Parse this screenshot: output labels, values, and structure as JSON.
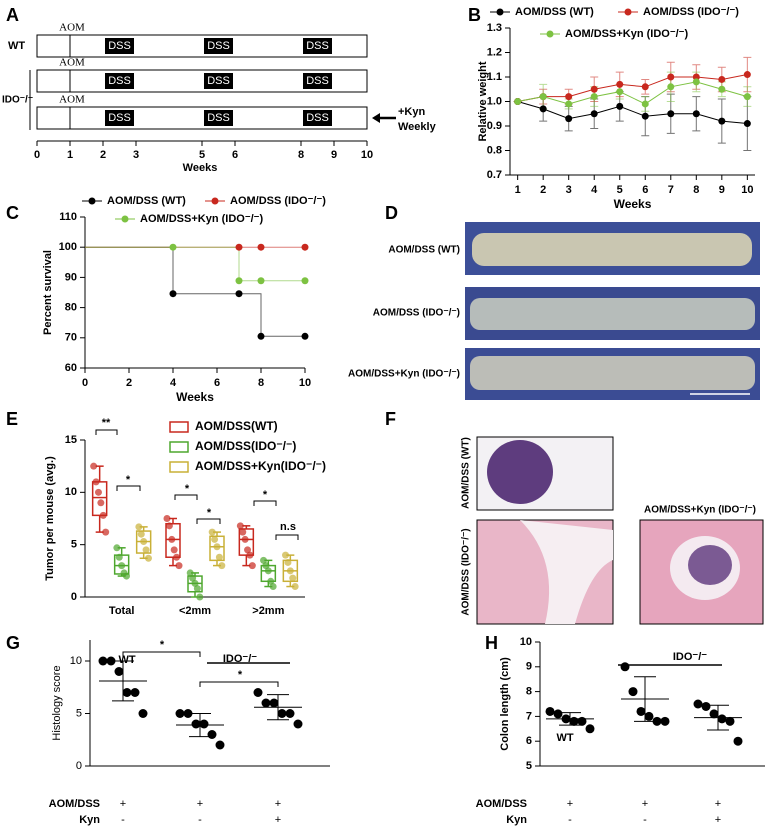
{
  "panel_labels": [
    "A",
    "B",
    "C",
    "D",
    "E",
    "F",
    "G",
    "H"
  ],
  "schedule": {
    "row_labels": [
      "WT",
      "IDO⁻/⁻"
    ],
    "aom_label": "AOM",
    "dss_label": "DSS",
    "aom_week": 1,
    "dss_periods": [
      [
        2,
        3
      ],
      [
        5,
        6
      ],
      [
        8,
        9
      ]
    ],
    "xticks": [
      0,
      1,
      2,
      3,
      5,
      6,
      8,
      9,
      10
    ],
    "xlabel": "Weeks",
    "kyn_label": [
      "+Kyn",
      "Weekly"
    ]
  },
  "photos": {
    "labels": [
      "AOM/DSS (WT)",
      "AOM/DSS (IDO⁻/⁻)",
      "AOM/DSS+Kyn (IDO⁻/⁻)"
    ]
  },
  "histology": {
    "labels": [
      "AOM/DSS (WT)",
      "AOM/DSS (IDO⁻/⁻)",
      "AOM/DSS+Kyn (IDO⁻/⁻)"
    ]
  },
  "chart_data": [
    {
      "type": "line",
      "xlabel": "Weeks",
      "ylabel": "Relative weight",
      "x": [
        1,
        2,
        3,
        4,
        5,
        6,
        7,
        8,
        9,
        10
      ],
      "xlim": [
        0.7,
        10.3
      ],
      "xticks": [
        1,
        2,
        3,
        4,
        5,
        6,
        7,
        8,
        9,
        10
      ],
      "ylim": [
        0.7,
        1.3
      ],
      "yticks": [
        0.7,
        0.8,
        0.9,
        {
          "value": 1,
          "label": "1.0"
        },
        1.1,
        1.2,
        1.3
      ],
      "series": [
        {
          "name": "AOM/DSS (WT)",
          "color": "#000000",
          "values": [
            1.0,
            0.97,
            0.93,
            0.95,
            0.98,
            0.94,
            0.95,
            0.95,
            0.92,
            0.91
          ],
          "errors": [
            0,
            0.05,
            0.05,
            0.06,
            0.06,
            0.08,
            0.08,
            0.07,
            0.09,
            0.11
          ]
        },
        {
          "name": "AOM/DSS (IDO⁻/⁻)",
          "color": "#c8281e",
          "values": [
            1.0,
            1.02,
            1.02,
            1.05,
            1.07,
            1.06,
            1.1,
            1.1,
            1.09,
            1.11
          ],
          "errors": [
            0,
            0.03,
            0.03,
            0.05,
            0.05,
            0.03,
            0.06,
            0.05,
            0.05,
            0.07
          ]
        },
        {
          "name": "AOM/DSS+Kyn (IDO⁻/⁻)",
          "color": "#7dc242",
          "values": [
            1.0,
            1.02,
            0.99,
            1.02,
            1.04,
            0.99,
            1.06,
            1.08,
            1.05,
            1.02
          ],
          "errors": [
            0,
            0.05,
            0.02,
            0.04,
            0.03,
            0.03,
            0.06,
            0.04,
            0.03,
            0.04
          ]
        }
      ]
    },
    {
      "type": "step",
      "xlabel": "Weeks",
      "ylabel": "Percent survival",
      "xlim": [
        0,
        10
      ],
      "xticks": [
        0,
        2,
        4,
        6,
        8,
        10
      ],
      "ylim": [
        60,
        110
      ],
      "yticks": [
        60,
        70,
        80,
        90,
        100,
        110
      ],
      "series": [
        {
          "name": "AOM/DSS (WT)",
          "color": "#000000",
          "x": [
            0,
            4,
            7,
            8,
            10
          ],
          "values": [
            100,
            84.6,
            84.6,
            70.5,
            70.5
          ]
        },
        {
          "name": "AOM/DSS (IDO⁻/⁻)",
          "color": "#c8281e",
          "x": [
            0,
            7,
            8,
            10
          ],
          "values": [
            100,
            100,
            100,
            100
          ]
        },
        {
          "name": "AOM/DSS+Kyn (IDO⁻/⁻)",
          "color": "#7dc242",
          "x": [
            0,
            4,
            7,
            8,
            10
          ],
          "values": [
            100,
            100,
            88.9,
            88.9,
            88.9
          ]
        }
      ]
    },
    {
      "type": "box",
      "ylabel": "Tumor per mouse (avg.)",
      "categories": [
        "Total",
        "<2mm",
        ">2mm"
      ],
      "ylim": [
        0,
        15
      ],
      "yticks": [
        0,
        5,
        10,
        15
      ],
      "annotations": [
        "**",
        "*",
        "*",
        "*",
        "*",
        "n.s"
      ],
      "series": [
        {
          "name": "AOM/DSS(WT)",
          "color": "#c8281e",
          "boxes": [
            {
              "min": 6.2,
              "q1": 7.8,
              "median": 9.5,
              "q3": 11,
              "max": 12.5,
              "points": [
                12.5,
                11,
                10,
                9,
                7.8,
                6.2
              ]
            },
            {
              "min": 3,
              "q1": 3.8,
              "median": 5.5,
              "q3": 7,
              "max": 7.5,
              "points": [
                7.5,
                6.8,
                5.5,
                4.5,
                3.8,
                3
              ]
            },
            {
              "min": 3,
              "q1": 4,
              "median": 5.5,
              "q3": 6.5,
              "max": 6.8,
              "points": [
                6.8,
                6.2,
                5.5,
                4.5,
                4,
                3
              ]
            }
          ]
        },
        {
          "name": "AOM/DSS(IDO⁻/⁻)",
          "color": "#4ea72e",
          "boxes": [
            {
              "min": 2,
              "q1": 2.2,
              "median": 3,
              "q3": 4,
              "max": 4.7,
              "points": [
                4.7,
                3.8,
                3,
                2.3,
                2
              ]
            },
            {
              "min": 0,
              "q1": 0.5,
              "median": 1.3,
              "q3": 2,
              "max": 2.3,
              "points": [
                2.3,
                1.8,
                1.3,
                0.8,
                0
              ]
            },
            {
              "min": 1,
              "q1": 1.5,
              "median": 2.5,
              "q3": 3,
              "max": 3.5,
              "points": [
                3.5,
                3,
                2.5,
                1.5,
                1
              ]
            }
          ]
        },
        {
          "name": "AOM/DSS+Kyn(IDO⁻/⁻)",
          "color": "#c9b037",
          "boxes": [
            {
              "min": 3.7,
              "q1": 4.2,
              "median": 5.3,
              "q3": 6.3,
              "max": 6.7,
              "points": [
                6.7,
                6,
                5.3,
                4.5,
                3.7
              ]
            },
            {
              "min": 3,
              "q1": 3.5,
              "median": 4.8,
              "q3": 5.8,
              "max": 6.2,
              "points": [
                6.2,
                5.5,
                4.8,
                3.8,
                3
              ]
            },
            {
              "min": 1,
              "q1": 1.5,
              "median": 2.5,
              "q3": 3.5,
              "max": 4,
              "points": [
                4,
                3.3,
                2.5,
                1.8,
                1
              ]
            }
          ]
        }
      ]
    },
    {
      "type": "dot",
      "ylabel": "Histology score",
      "ylim": [
        0,
        12
      ],
      "yticks": [
        0,
        5,
        10
      ],
      "annotations": [
        "WT",
        "IDO⁻/⁻",
        "*",
        "*"
      ],
      "conditions": [
        {
          "name": "AOM/DSS",
          "values": [
            "+",
            "+",
            "+"
          ]
        },
        {
          "name": "Kyn",
          "values": [
            "-",
            "-",
            "+"
          ]
        }
      ],
      "series": [
        {
          "values": [
            10,
            10,
            9,
            7,
            7,
            5
          ],
          "mean": 8.1,
          "sd": 1.9
        },
        {
          "values": [
            5,
            5,
            4,
            4,
            3,
            2
          ],
          "mean": 3.9,
          "sd": 1.1
        },
        {
          "values": [
            7,
            6,
            6,
            5,
            5,
            4
          ],
          "mean": 5.6,
          "sd": 1.2
        }
      ]
    },
    {
      "type": "dot",
      "ylabel": "Colon length (cm)",
      "ylim": [
        5,
        10
      ],
      "yticks": [
        5,
        6,
        7,
        8,
        9,
        10
      ],
      "annotations": [
        "WT",
        "IDO⁻/⁻"
      ],
      "conditions": [
        {
          "name": "AOM/DSS",
          "values": [
            "+",
            "+",
            "+"
          ]
        },
        {
          "name": "Kyn",
          "values": [
            "-",
            "-",
            "+"
          ]
        }
      ],
      "series": [
        {
          "values": [
            7.2,
            7.1,
            6.9,
            6.8,
            6.8,
            6.5
          ],
          "mean": 6.9,
          "sd": 0.25
        },
        {
          "values": [
            9,
            8,
            7.2,
            7,
            6.8,
            6.8
          ],
          "mean": 7.7,
          "sd": 0.9
        },
        {
          "values": [
            7.5,
            7.4,
            7.1,
            6.9,
            6.8,
            6
          ],
          "mean": 6.95,
          "sd": 0.5
        }
      ]
    }
  ]
}
